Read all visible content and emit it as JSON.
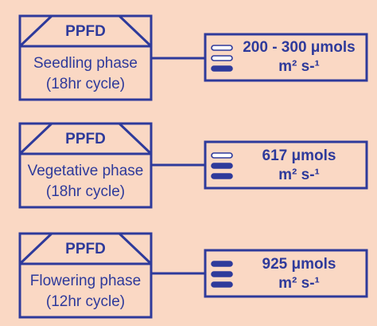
{
  "colors": {
    "background": "#FAD8C4",
    "stroke": "#2E3A9B",
    "fill_bar": "#2E3A9B",
    "empty_bar": "#FFFFFF"
  },
  "rows": [
    {
      "header": "PPFD",
      "phase": "Seedling phase",
      "cycle": "(18hr cycle)",
      "value_line1": "200 - 300 μmols",
      "value_line2": "m² s-¹",
      "level_bars_filled": 1
    },
    {
      "header": "PPFD",
      "phase": "Vegetative phase",
      "cycle": "(18hr cycle)",
      "value_line1": "617 μmols",
      "value_line2": "m² s-¹",
      "level_bars_filled": 2
    },
    {
      "header": "PPFD",
      "phase": "Flowering phase",
      "cycle": "(12hr cycle)",
      "value_line1": "925 μmols",
      "value_line2": "m² s-¹",
      "level_bars_filled": 3
    }
  ]
}
